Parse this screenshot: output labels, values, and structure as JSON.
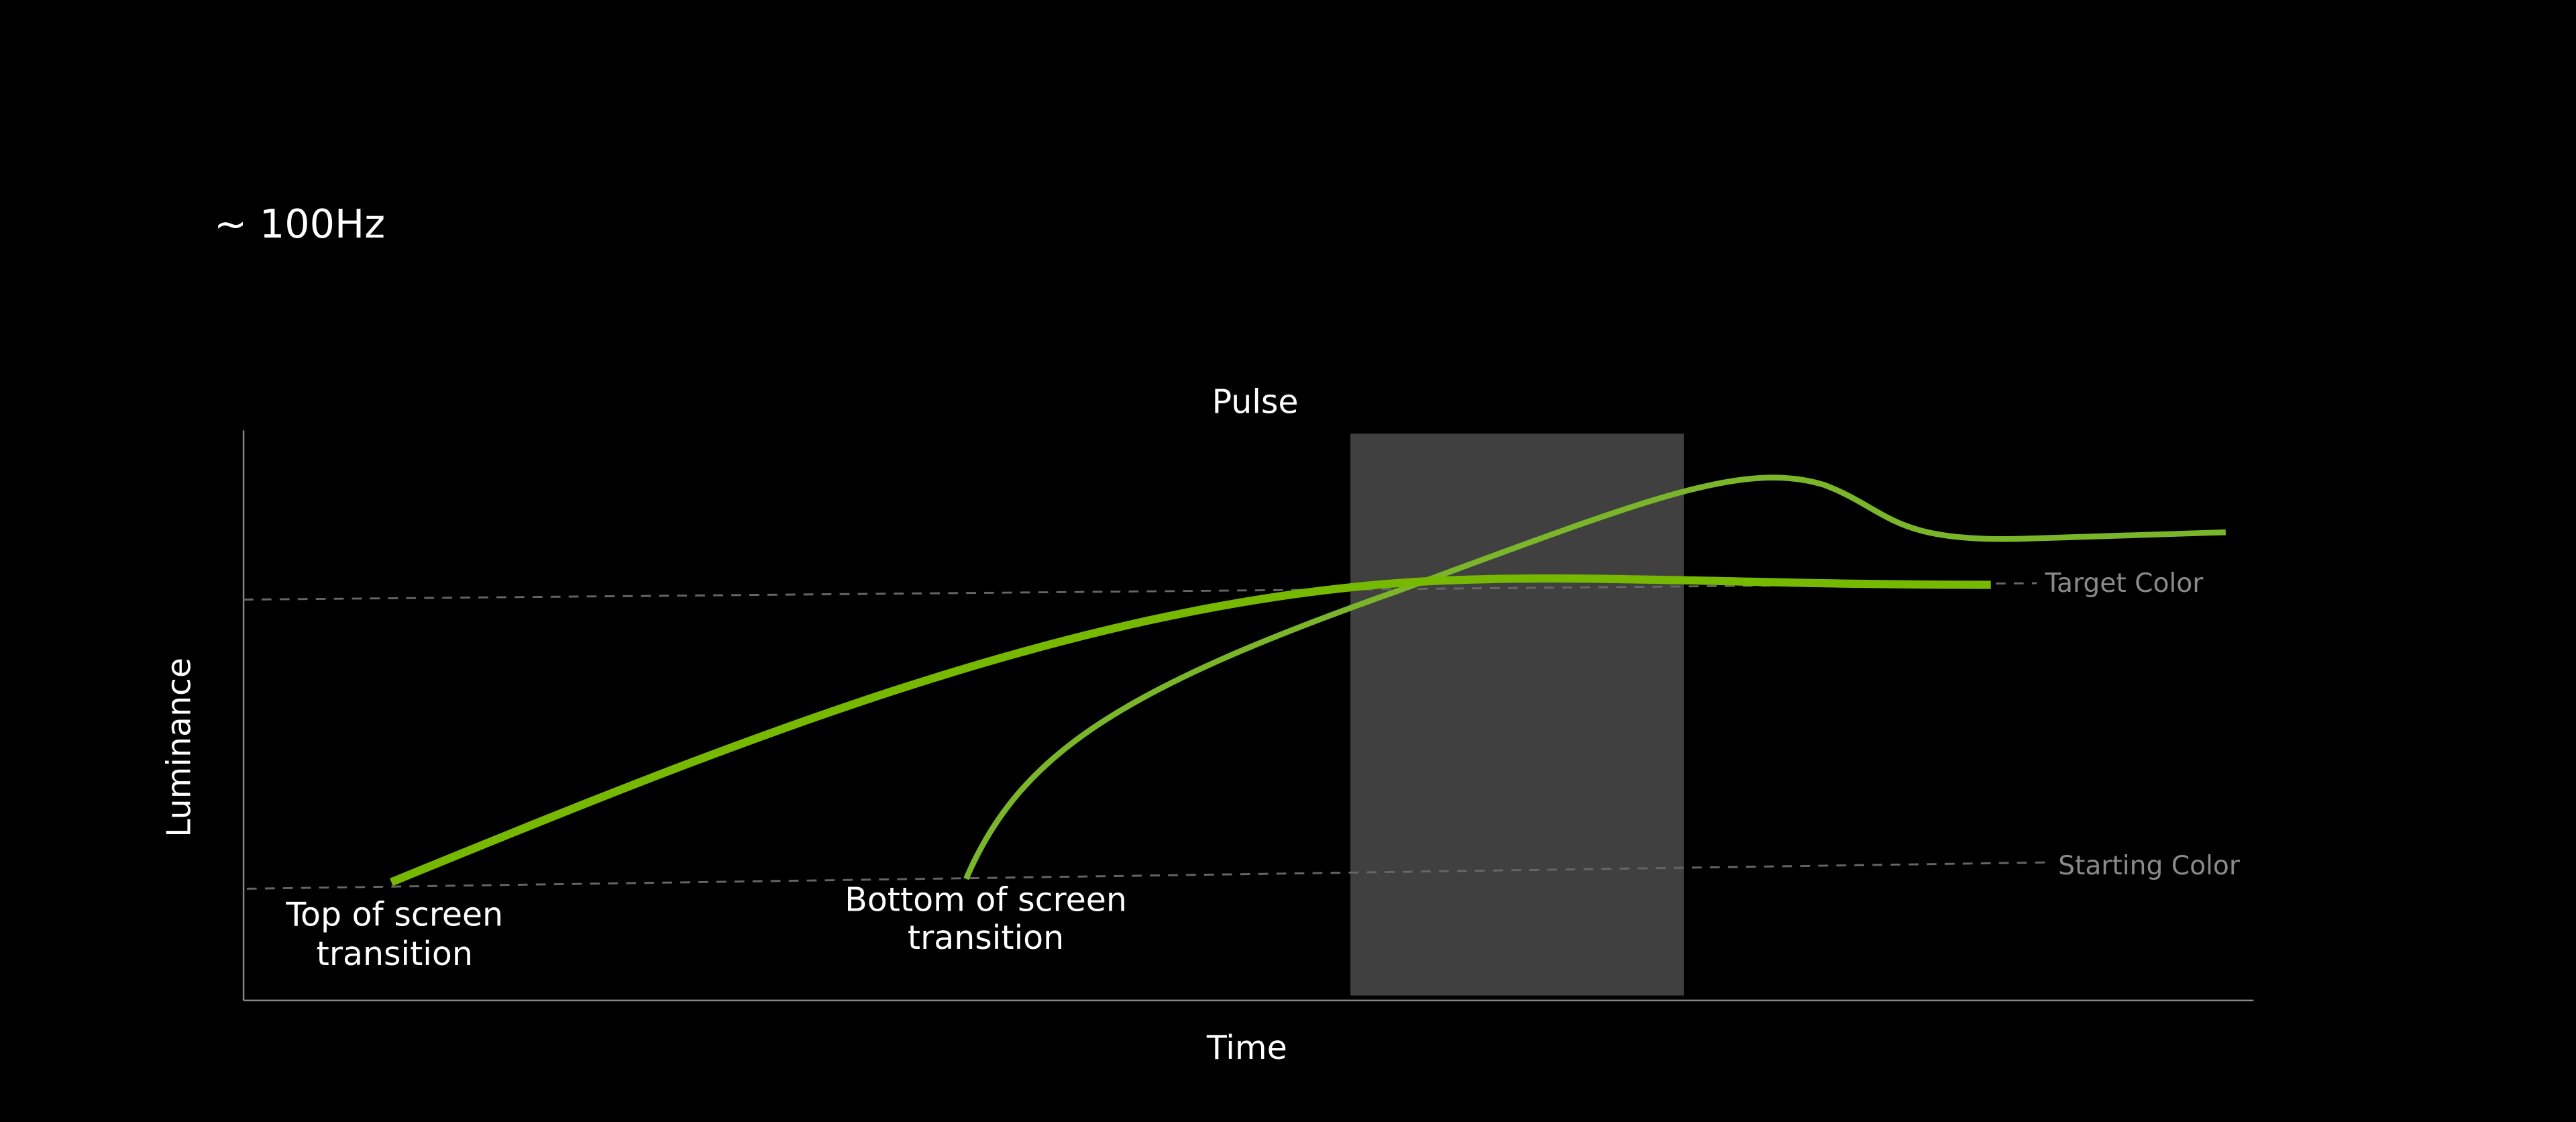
{
  "header": {
    "title": "~ 100Hz"
  },
  "chart": {
    "title": "Pulse",
    "x_label": "Time",
    "y_label": "Luminance"
  },
  "labels": {
    "target": "Target Color",
    "starting": "Starting Color",
    "top": [
      "Top of screen",
      "transition"
    ],
    "bottom": [
      "Bottom of screen",
      "transition"
    ]
  }
}
